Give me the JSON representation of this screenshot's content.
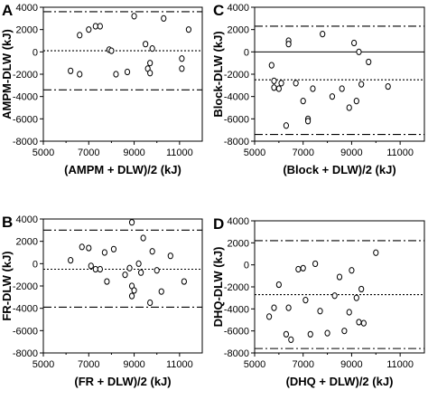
{
  "chart_data": [
    {
      "type": "scatter",
      "panel_label": "A",
      "xlabel": "(AMPM + DLW)/2 (kJ)",
      "ylabel": "AMPM-DLW (kJ)",
      "xlim": [
        5000,
        12000
      ],
      "ylim": [
        -8000,
        4000
      ],
      "xticks": [
        "5000",
        "7000",
        "9000",
        "11000"
      ],
      "yticks": [
        "4000",
        "2000",
        "0",
        "-2000",
        "-4000",
        "-6000",
        "-8000"
      ],
      "points": [
        {
          "x": 6200,
          "y": -1700
        },
        {
          "x": 6600,
          "y": 1500
        },
        {
          "x": 6600,
          "y": -2000
        },
        {
          "x": 7000,
          "y": 2000
        },
        {
          "x": 7300,
          "y": 2300
        },
        {
          "x": 7500,
          "y": 2300
        },
        {
          "x": 7900,
          "y": 200
        },
        {
          "x": 8000,
          "y": 100
        },
        {
          "x": 8200,
          "y": -2000
        },
        {
          "x": 8700,
          "y": -1800
        },
        {
          "x": 9000,
          "y": 3200
        },
        {
          "x": 9500,
          "y": 700
        },
        {
          "x": 9600,
          "y": -1500
        },
        {
          "x": 9700,
          "y": -1900
        },
        {
          "x": 9700,
          "y": -1000
        },
        {
          "x": 9800,
          "y": 300
        },
        {
          "x": 10300,
          "y": 3000
        },
        {
          "x": 11100,
          "y": -600
        },
        {
          "x": 11100,
          "y": -1500
        },
        {
          "x": 11400,
          "y": 2000
        }
      ],
      "lines": [
        {
          "style": "dash-dot",
          "y": 3600
        },
        {
          "style": "dotted",
          "y": 100
        },
        {
          "style": "dash-dot",
          "y": -3400
        }
      ]
    },
    {
      "type": "scatter",
      "panel_label": "C",
      "xlabel": "(Block + DLW)/2 (kJ)",
      "ylabel": "Block-DLW (kJ)",
      "xlim": [
        5000,
        12000
      ],
      "ylim": [
        -8000,
        4000
      ],
      "xticks": [
        "5000",
        "7000",
        "9000",
        "11000"
      ],
      "yticks": [
        "4000",
        "2000",
        "0",
        "-2000",
        "-4000",
        "-6000",
        "-8000"
      ],
      "points": [
        {
          "x": 5700,
          "y": -1200
        },
        {
          "x": 5800,
          "y": -2600
        },
        {
          "x": 5800,
          "y": -3200
        },
        {
          "x": 6000,
          "y": -3300
        },
        {
          "x": 6100,
          "y": -2800
        },
        {
          "x": 6300,
          "y": -6600
        },
        {
          "x": 6400,
          "y": 1000
        },
        {
          "x": 6400,
          "y": 700
        },
        {
          "x": 6700,
          "y": -2800
        },
        {
          "x": 7000,
          "y": -4400
        },
        {
          "x": 7200,
          "y": -6000
        },
        {
          "x": 7200,
          "y": -6200
        },
        {
          "x": 7400,
          "y": -3300
        },
        {
          "x": 7800,
          "y": 1600
        },
        {
          "x": 8200,
          "y": -4000
        },
        {
          "x": 8600,
          "y": -3300
        },
        {
          "x": 8900,
          "y": -5000
        },
        {
          "x": 9100,
          "y": 800
        },
        {
          "x": 9200,
          "y": -4400
        },
        {
          "x": 9300,
          "y": 0
        },
        {
          "x": 9400,
          "y": -2900
        },
        {
          "x": 9700,
          "y": -900
        },
        {
          "x": 10500,
          "y": -3100
        }
      ],
      "lines": [
        {
          "style": "dash-dot",
          "y": 2300
        },
        {
          "style": "solid",
          "y": 0
        },
        {
          "style": "dotted",
          "y": -2500
        },
        {
          "style": "dash-dot",
          "y": -7400
        }
      ]
    },
    {
      "type": "scatter",
      "panel_label": "B",
      "xlabel": "(FR + DLW)/2 (kJ)",
      "ylabel": "FR-DLW (kJ)",
      "xlim": [
        5000,
        12000
      ],
      "ylim": [
        -8000,
        4000
      ],
      "xticks": [
        "5000",
        "7000",
        "9000",
        "11000"
      ],
      "yticks": [
        "4000",
        "2000",
        "0",
        "-2000",
        "-4000",
        "-6000",
        "-8000"
      ],
      "points": [
        {
          "x": 6200,
          "y": 300
        },
        {
          "x": 6700,
          "y": 1500
        },
        {
          "x": 7000,
          "y": 1400
        },
        {
          "x": 7100,
          "y": -200
        },
        {
          "x": 7300,
          "y": -500
        },
        {
          "x": 7500,
          "y": -500
        },
        {
          "x": 7700,
          "y": 1000
        },
        {
          "x": 7800,
          "y": -1600
        },
        {
          "x": 8100,
          "y": 1300
        },
        {
          "x": 8600,
          "y": -1000
        },
        {
          "x": 8800,
          "y": -400
        },
        {
          "x": 8900,
          "y": 3700
        },
        {
          "x": 8900,
          "y": -2000
        },
        {
          "x": 8900,
          "y": -2900
        },
        {
          "x": 9000,
          "y": -2400
        },
        {
          "x": 9200,
          "y": 0
        },
        {
          "x": 9300,
          "y": -800
        },
        {
          "x": 9400,
          "y": 2300
        },
        {
          "x": 9700,
          "y": -3500
        },
        {
          "x": 9800,
          "y": 1100
        },
        {
          "x": 10000,
          "y": -600
        },
        {
          "x": 10200,
          "y": -2500
        },
        {
          "x": 10600,
          "y": 700
        },
        {
          "x": 11200,
          "y": -1600
        }
      ],
      "lines": [
        {
          "style": "dash-dot",
          "y": 3000
        },
        {
          "style": "dotted",
          "y": -500
        },
        {
          "style": "dash-dot",
          "y": -3900
        }
      ]
    },
    {
      "type": "scatter",
      "panel_label": "D",
      "xlabel": "(DHQ + DLW)/2 (kJ)",
      "ylabel": "DHQ-DLW (kJ)",
      "xlim": [
        5000,
        12000
      ],
      "ylim": [
        -8000,
        4000
      ],
      "xticks": [
        "5000",
        "7000",
        "9000",
        "11000"
      ],
      "yticks": [
        "4000",
        "2000",
        "0",
        "-2000",
        "-4000",
        "-6000",
        "-8000"
      ],
      "points": [
        {
          "x": 5600,
          "y": -4700
        },
        {
          "x": 5800,
          "y": -3900
        },
        {
          "x": 6000,
          "y": -1800
        },
        {
          "x": 6300,
          "y": -6300
        },
        {
          "x": 6400,
          "y": -3900
        },
        {
          "x": 6500,
          "y": -6800
        },
        {
          "x": 6800,
          "y": -400
        },
        {
          "x": 7000,
          "y": -300
        },
        {
          "x": 7100,
          "y": -3200
        },
        {
          "x": 7300,
          "y": -6300
        },
        {
          "x": 7500,
          "y": 100
        },
        {
          "x": 7700,
          "y": -4200
        },
        {
          "x": 8000,
          "y": -6200
        },
        {
          "x": 8300,
          "y": -2800
        },
        {
          "x": 8500,
          "y": -1100
        },
        {
          "x": 8700,
          "y": -6000
        },
        {
          "x": 8900,
          "y": -4300
        },
        {
          "x": 9000,
          "y": -500
        },
        {
          "x": 9200,
          "y": -3000
        },
        {
          "x": 9300,
          "y": -5200
        },
        {
          "x": 9400,
          "y": -2200
        },
        {
          "x": 9500,
          "y": -5300
        },
        {
          "x": 10000,
          "y": 1100
        }
      ],
      "lines": [
        {
          "style": "dash-dot",
          "y": 2200
        },
        {
          "style": "dotted",
          "y": -2700
        },
        {
          "style": "dash-dot",
          "y": -7600
        }
      ]
    }
  ]
}
